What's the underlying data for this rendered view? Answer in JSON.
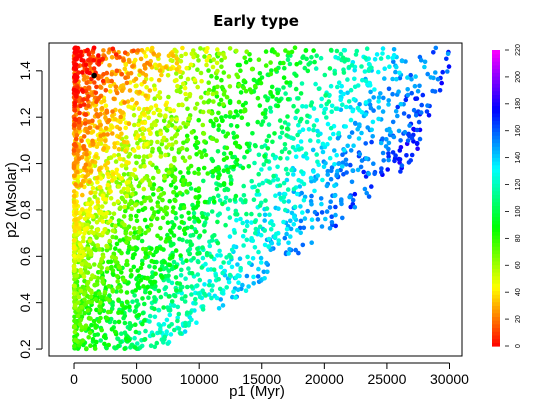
{
  "chart_data": {
    "type": "scatter",
    "title": "Early type",
    "xlabel": "p1 (Myr)",
    "ylabel": "p2 (Msolar)",
    "xlim": [
      -2000,
      31000
    ],
    "ylim": [
      0.17,
      1.52
    ],
    "x_ticks": [
      0,
      5000,
      10000,
      15000,
      20000,
      25000,
      30000
    ],
    "x_tick_labels": [
      "0",
      "5000",
      "10000",
      "15000",
      "20000",
      "25000",
      "30000"
    ],
    "y_ticks": [
      0.2,
      0.4,
      0.6,
      0.8,
      1.0,
      1.2,
      1.4
    ],
    "y_tick_labels": [
      "0.2",
      "0.4",
      "0.6",
      "0.8",
      "1.0",
      "1.2",
      "1.4"
    ],
    "grid": false,
    "color_scale": {
      "name": "rainbow",
      "range": [
        0,
        220
      ],
      "ticks": [
        0,
        20,
        40,
        60,
        80,
        100,
        120,
        140,
        160,
        180,
        200,
        220
      ],
      "tick_labels": [
        "0",
        "20",
        "40",
        "60",
        "80",
        "100",
        "120",
        "140",
        "160",
        "180",
        "200",
        "220"
      ],
      "low_color": "#ff0000",
      "high_color": "#ff00ff"
    },
    "series": [
      {
        "marker": "filled-circle",
        "color_by": "value",
        "distribution": {
          "count": 3200,
          "x_range": [
            0,
            30000
          ],
          "y_range": [
            0.2,
            1.5
          ],
          "lower_edge": [
            [
              0,
              0.2
            ],
            [
              7000,
              0.2
            ],
            [
              18000,
              0.6
            ],
            [
              27000,
              1.0
            ],
            [
              30000,
              1.4
            ]
          ],
          "color_trend": "increases with p1 and decreases with p2"
        }
      }
    ],
    "highlight_point": {
      "x": 1600,
      "y": 1.38,
      "color": "#000000"
    }
  }
}
